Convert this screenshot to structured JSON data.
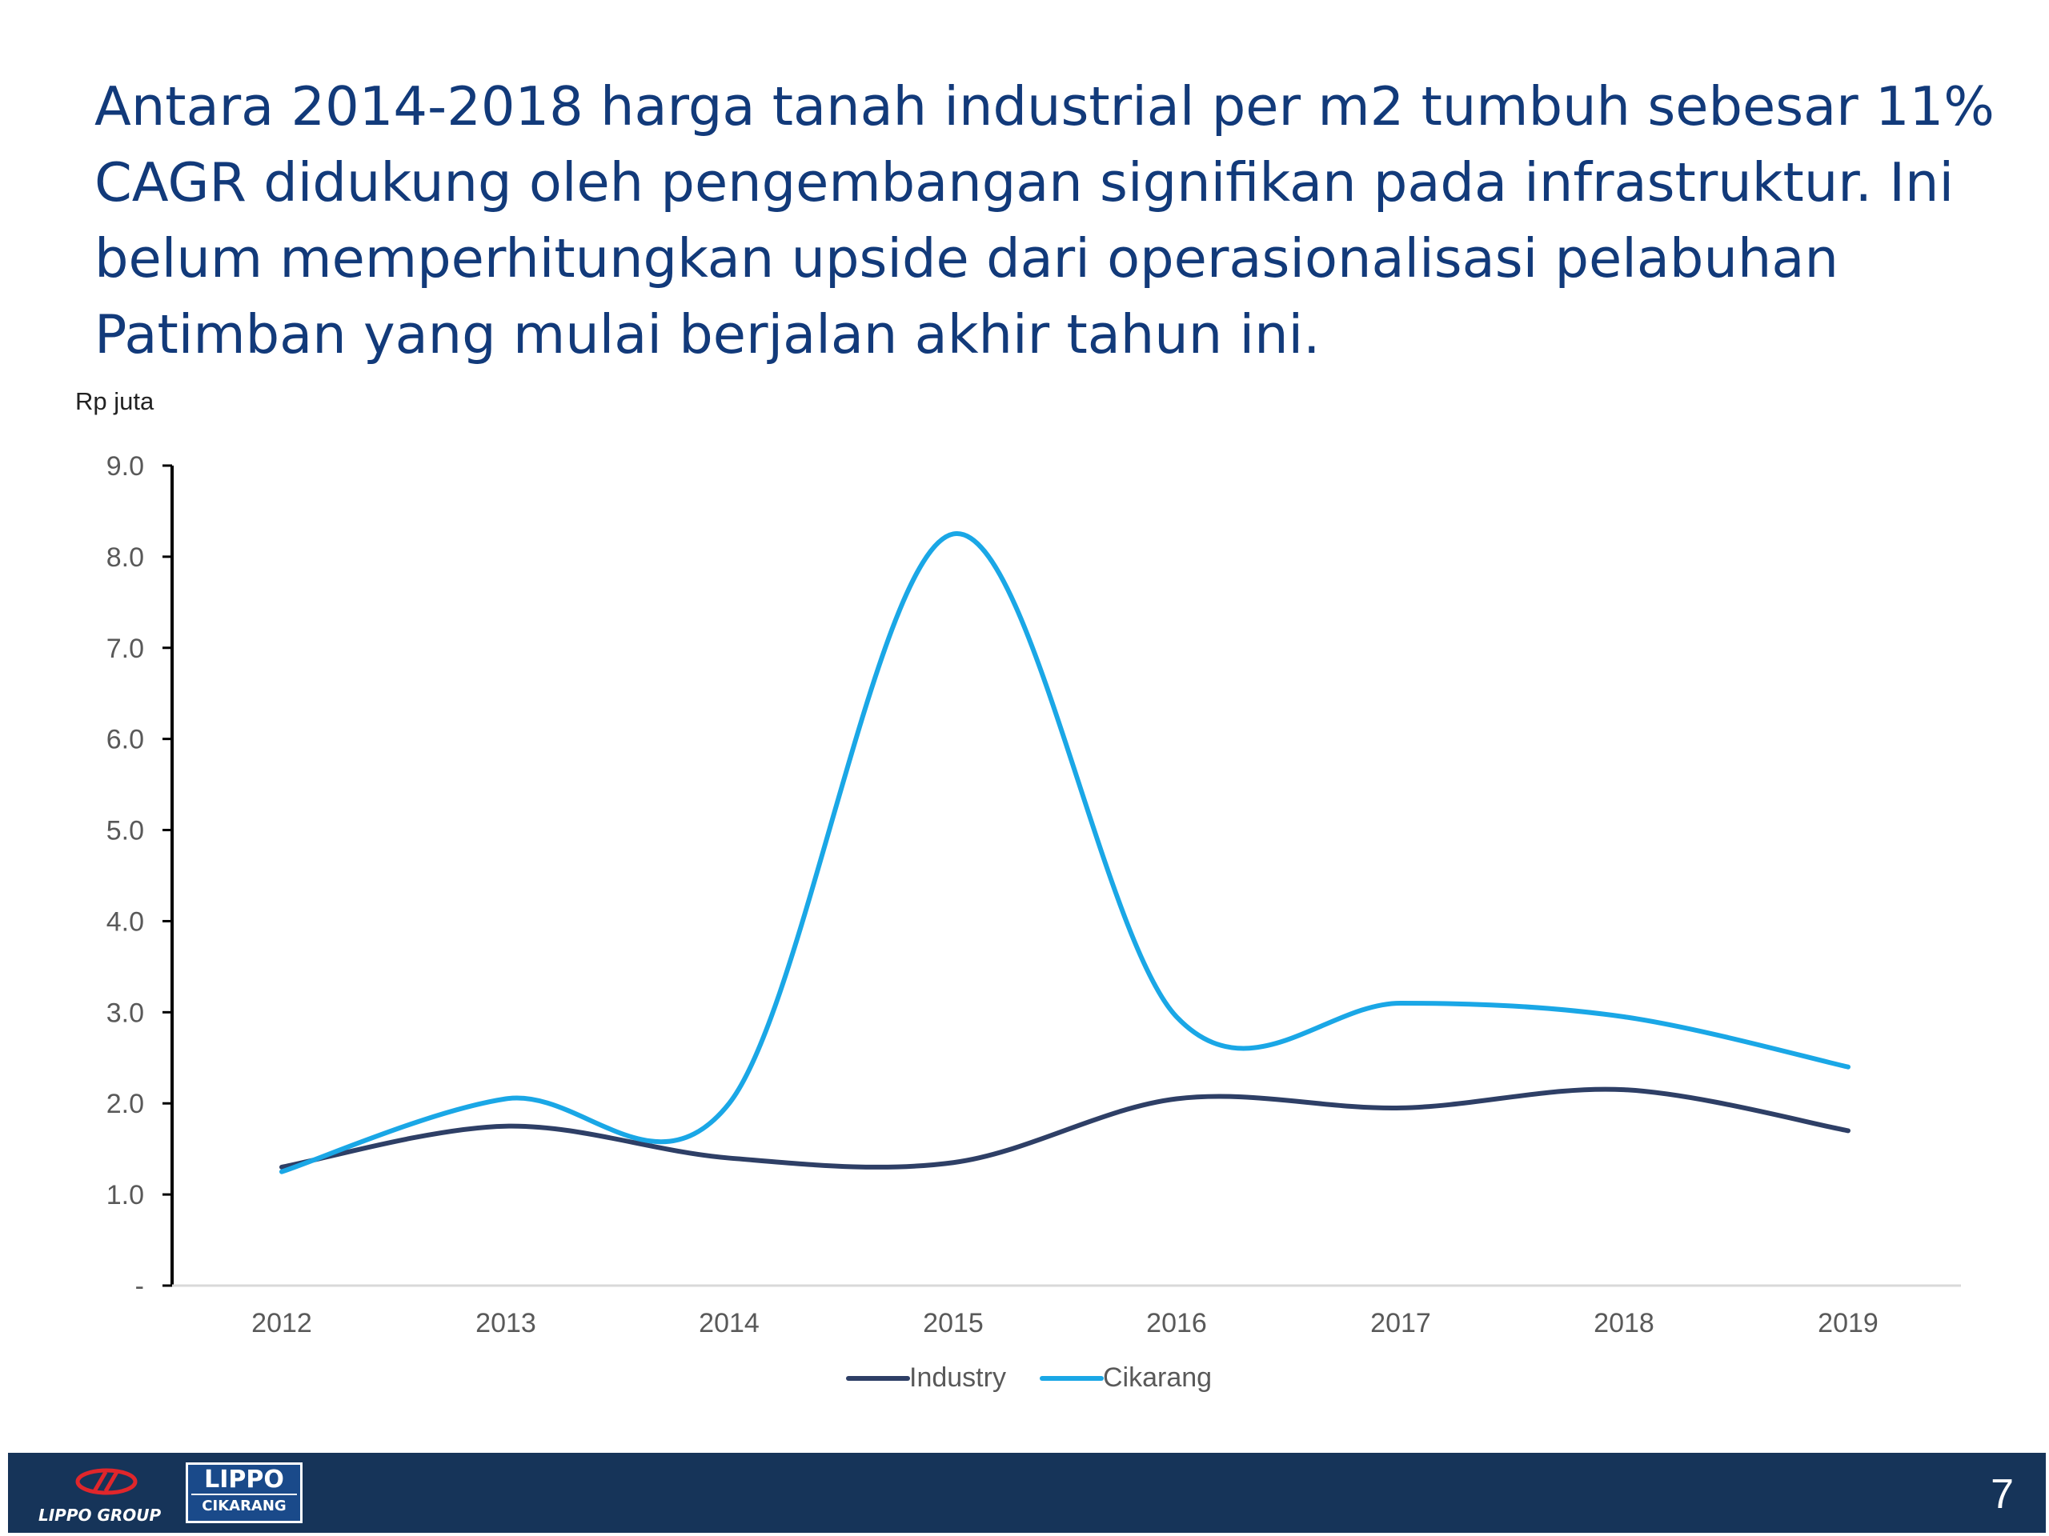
{
  "slide": {
    "title": "Antara 2014-2018 harga tanah industrial per m2 tumbuh sebesar 11% CAGR didukung oleh pengembangan signifikan pada infrastruktur. Ini belum memperhitungkan upside dari operasionalisasi pelabuhan Patimban yang mulai berjalan akhir tahun ini.",
    "page_number": "7"
  },
  "footer": {
    "logo_group_text": "LIPPO GROUP",
    "logo_cikarang_top": "LIPPO",
    "logo_cikarang_bottom": "CIKARANG",
    "background_color": "#163459"
  },
  "chart_data": {
    "type": "line",
    "smooth": true,
    "ylabel": "Rp juta",
    "x": [
      "2012",
      "2013",
      "2014",
      "2015",
      "2016",
      "2017",
      "2018",
      "2019"
    ],
    "ylim": [
      0,
      9
    ],
    "yticks": [
      0,
      1,
      2,
      3,
      4,
      5,
      6,
      7,
      8,
      9
    ],
    "ytick_labels": [
      "-",
      "1.0",
      "2.0",
      "3.0",
      "4.0",
      "5.0",
      "6.0",
      "7.0",
      "8.0",
      "9.0"
    ],
    "grid": false,
    "legend": "bottom",
    "series": [
      {
        "name": "Industry",
        "color": "#2e3f66",
        "values": [
          1.3,
          1.75,
          1.4,
          1.35,
          2.05,
          1.95,
          2.15,
          1.7
        ]
      },
      {
        "name": "Cikarang",
        "color": "#1aa7e6",
        "values": [
          1.25,
          2.05,
          2.0,
          8.25,
          2.95,
          3.1,
          2.95,
          2.4
        ]
      }
    ]
  }
}
